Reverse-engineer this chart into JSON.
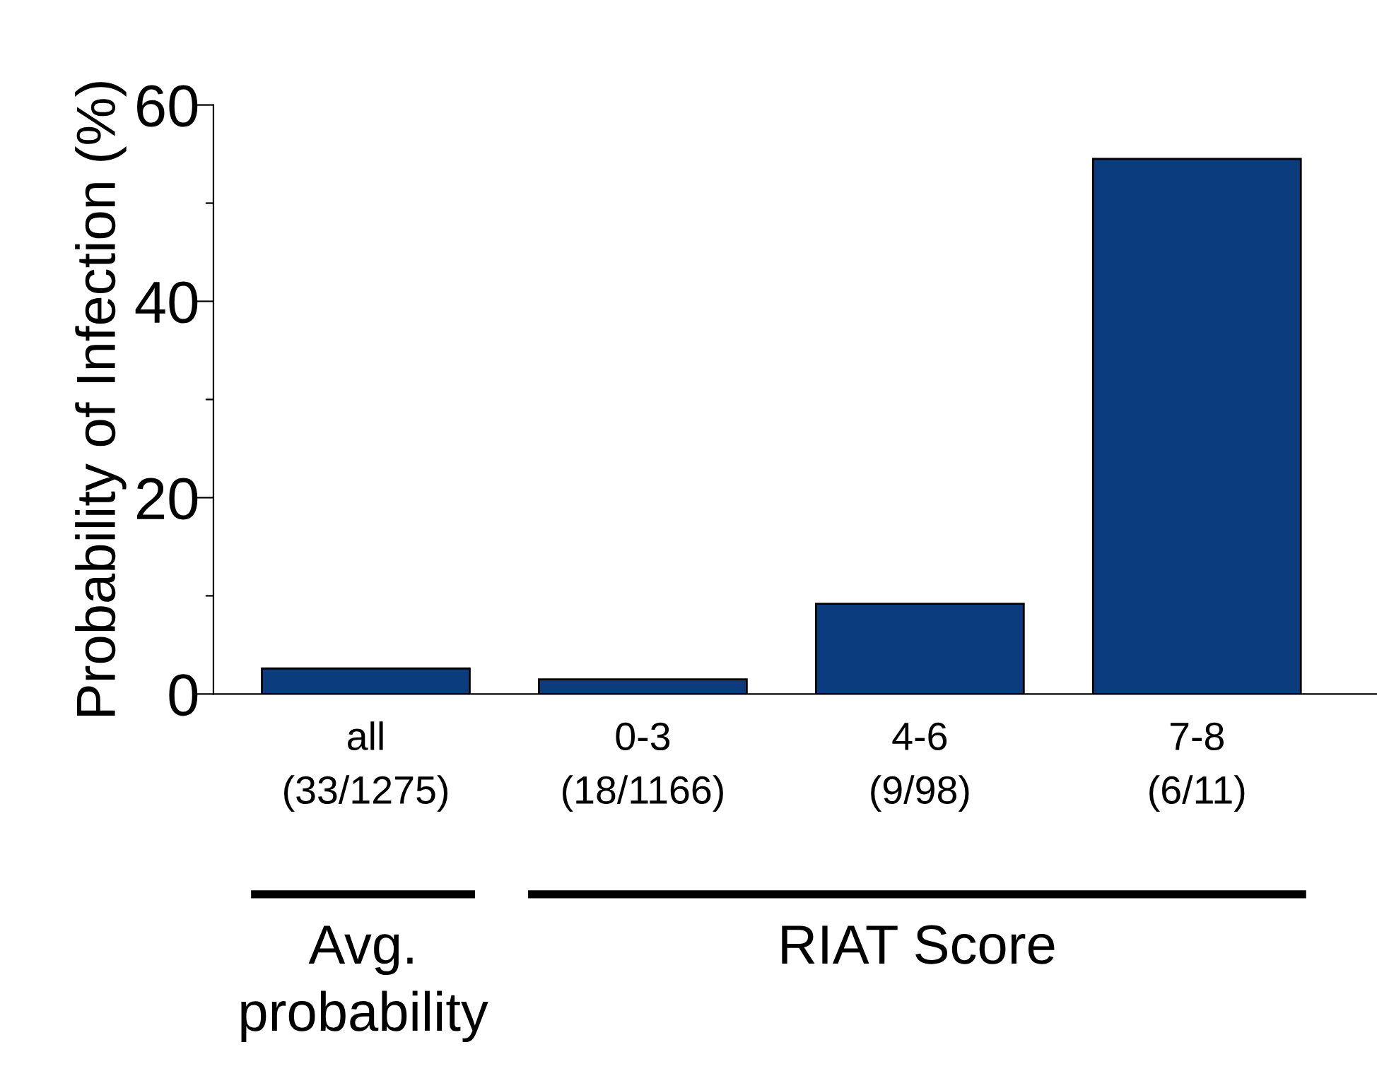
{
  "chart_data": {
    "type": "bar",
    "ylabel": "Probability of Infection (%)",
    "categories": [
      "all\n(33/1275)",
      "0-3\n(18/1166)",
      "4-6\n(9/98)",
      "7-8\n(6/11)"
    ],
    "values": [
      2.6,
      1.5,
      9.2,
      54.5
    ],
    "color": "#0b3d7e",
    "ylim": [
      0,
      60
    ],
    "yticks": [
      0,
      {
        "value": 10,
        "label": null
      },
      20,
      {
        "value": 30,
        "label": null
      },
      40,
      {
        "value": 50,
        "label": null
      },
      60
    ],
    "grid": false,
    "annotations": [
      "Avg.\nprobability",
      "RIAT Score"
    ]
  }
}
